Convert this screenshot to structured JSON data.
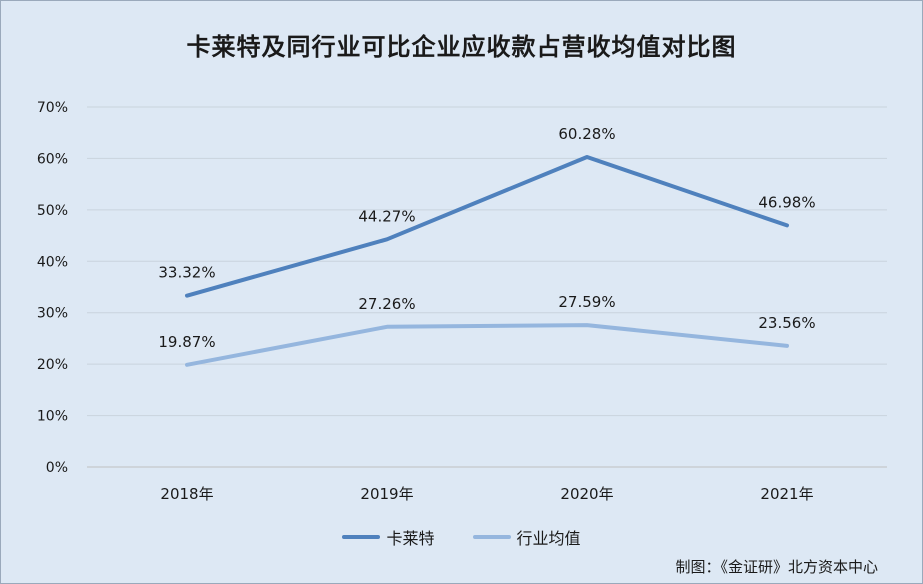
{
  "chart_data": {
    "type": "line",
    "title": "卡莱特及同行业可比企业应收款占营收均值对比图",
    "categories": [
      "2018年",
      "2019年",
      "2020年",
      "2021年"
    ],
    "series": [
      {
        "name": "卡莱特",
        "values": [
          33.32,
          44.27,
          60.28,
          46.98
        ],
        "labels": [
          "33.32%",
          "44.27%",
          "60.28%",
          "46.98%"
        ],
        "color": "#4f81bd"
      },
      {
        "name": "行业均值",
        "values": [
          19.87,
          27.26,
          27.59,
          23.56
        ],
        "labels": [
          "19.87%",
          "27.26%",
          "27.59%",
          "23.56%"
        ],
        "color": "#95b6de"
      }
    ],
    "ylim": [
      0,
      70
    ],
    "yticks": [
      "0%",
      "10%",
      "20%",
      "30%",
      "40%",
      "50%",
      "60%",
      "70%"
    ],
    "grid": true,
    "legend_position": "bottom",
    "source": "制图：《金证研》北方资本中心"
  }
}
